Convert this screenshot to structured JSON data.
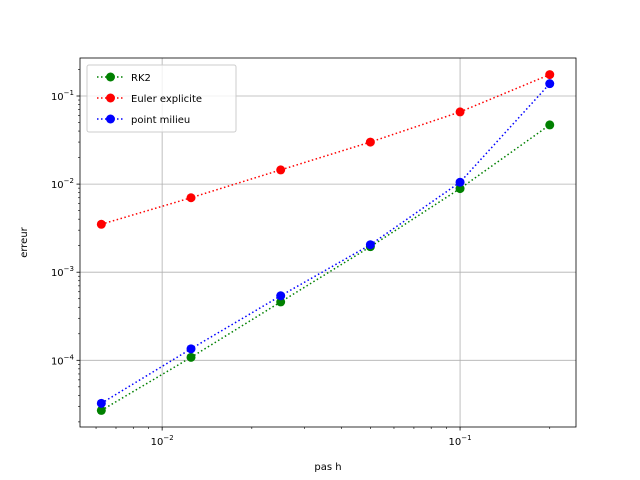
{
  "chart_data": {
    "type": "line",
    "title": "",
    "xlabel": "pas h",
    "ylabel": "erreur",
    "xscale": "log",
    "yscale": "log",
    "xlim": [
      0.0053,
      0.245
    ],
    "ylim": [
      1.75e-05,
      0.27
    ],
    "grid": true,
    "legend_position": "top-left",
    "x_major_ticks": [
      {
        "value": 0.01,
        "base": "10",
        "exp": "−2"
      },
      {
        "value": 0.1,
        "base": "10",
        "exp": "−1"
      }
    ],
    "y_major_ticks": [
      {
        "value": 0.0001,
        "base": "10",
        "exp": "−4"
      },
      {
        "value": 0.001,
        "base": "10",
        "exp": "−3"
      },
      {
        "value": 0.01,
        "base": "10",
        "exp": "−2"
      },
      {
        "value": 0.1,
        "base": "10",
        "exp": "−1"
      }
    ],
    "x": [
      0.00625,
      0.0125,
      0.025,
      0.05,
      0.1,
      0.2
    ],
    "series": [
      {
        "name": " RK2",
        "color": "#008000",
        "values": [
          2.7e-05,
          0.000108,
          0.00046,
          0.00195,
          0.0089,
          0.047
        ]
      },
      {
        "name": "Euler explicite",
        "color": "#ff0000",
        "values": [
          0.0035,
          0.007,
          0.0145,
          0.03,
          0.066,
          0.175
        ]
      },
      {
        "name": "point milieu",
        "color": "#0000ff",
        "values": [
          3.25e-05,
          0.000135,
          0.00054,
          0.00205,
          0.0105,
          0.138
        ]
      }
    ]
  }
}
